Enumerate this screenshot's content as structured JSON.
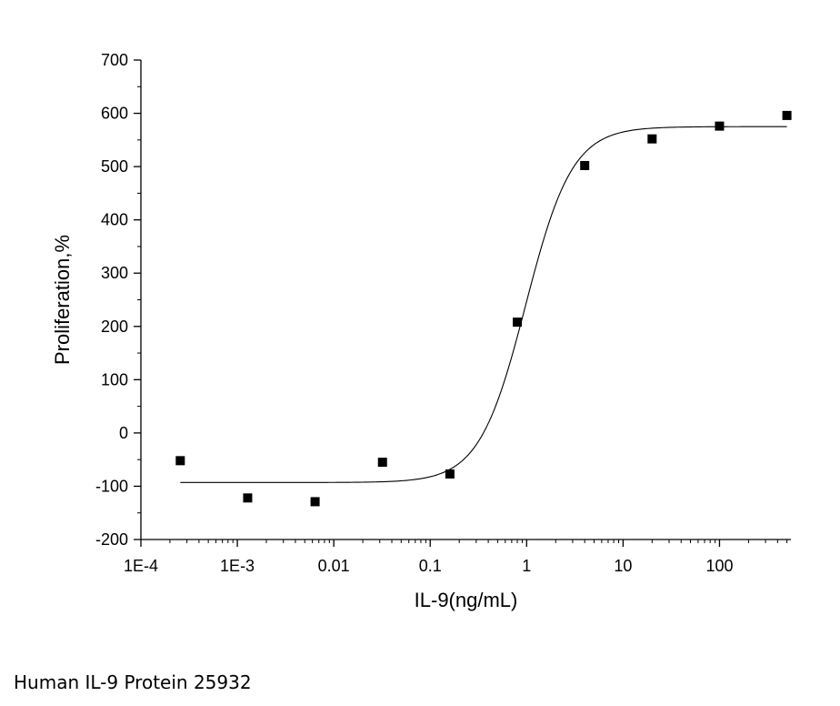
{
  "caption": "Human IL-9 Protein 25932",
  "chart_data": {
    "type": "scatter",
    "title": "",
    "xlabel": "IL-9(ng/mL)",
    "ylabel": "Proliferation,%",
    "xscale": "log",
    "xlim": [
      0.0001,
      550
    ],
    "ylim": [
      -200,
      700
    ],
    "xticks": [
      {
        "value": 0.0001,
        "label": "1E-4"
      },
      {
        "value": 0.001,
        "label": "1E-3"
      },
      {
        "value": 0.01,
        "label": "0.01"
      },
      {
        "value": 0.1,
        "label": "0.1"
      },
      {
        "value": 1,
        "label": "1"
      },
      {
        "value": 10,
        "label": "10"
      },
      {
        "value": 100,
        "label": "100"
      }
    ],
    "yticks": [
      {
        "value": 700,
        "label": "700"
      },
      {
        "value": 600,
        "label": "600"
      },
      {
        "value": 500,
        "label": "500"
      },
      {
        "value": 400,
        "label": "400"
      },
      {
        "value": 300,
        "label": "300"
      },
      {
        "value": 200,
        "label": "200"
      },
      {
        "value": 100,
        "label": "100"
      },
      {
        "value": 0,
        "label": "0"
      },
      {
        "value": -100,
        "label": "-100"
      },
      {
        "value": -200,
        "label": "-200"
      }
    ],
    "grid": false,
    "series": [
      {
        "marker": "square",
        "color": "#000000",
        "points": [
          {
            "x": 0.000256,
            "y": -52
          },
          {
            "x": 0.00128,
            "y": -122
          },
          {
            "x": 0.0064,
            "y": -129
          },
          {
            "x": 0.032,
            "y": -55
          },
          {
            "x": 0.16,
            "y": -77
          },
          {
            "x": 0.8,
            "y": 208
          },
          {
            "x": 4,
            "y": 502
          },
          {
            "x": 20,
            "y": 552
          },
          {
            "x": 100,
            "y": 576
          },
          {
            "x": 500,
            "y": 596
          }
        ]
      }
    ],
    "fit": {
      "type": "logistic",
      "color": "#000000",
      "bottom": -93,
      "top": 575,
      "ec50": 0.98,
      "hill": 1.8,
      "x_range": [
        0.000256,
        500
      ]
    }
  }
}
